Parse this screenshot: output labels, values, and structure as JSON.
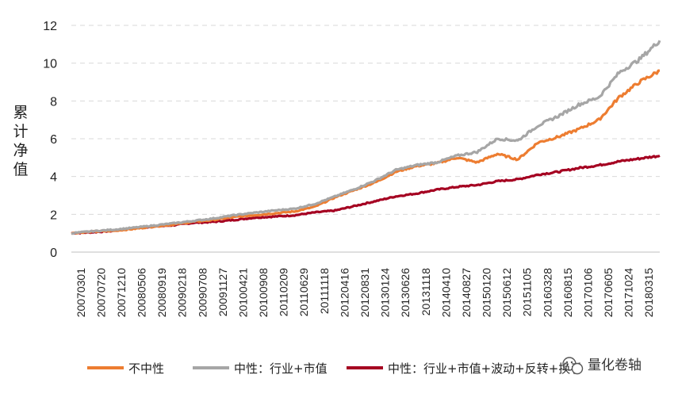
{
  "chart_data": {
    "type": "line",
    "ylabel": "累计净值",
    "ylim": [
      0,
      12
    ],
    "yticks": [
      0,
      2,
      4,
      6,
      8,
      10,
      12
    ],
    "grid": true,
    "legend_position": "bottom",
    "x_tick_labels": [
      "20070301",
      "20070720",
      "20071210",
      "20080506",
      "20080919",
      "20090218",
      "20090708",
      "20091127",
      "20100421",
      "20100908",
      "20110209",
      "20110629",
      "20111118",
      "20120416",
      "20120831",
      "20130124",
      "20130626",
      "20131118",
      "20140410",
      "20140827",
      "20150120",
      "20150612",
      "20151105",
      "20160328",
      "20160815",
      "20170106",
      "20170605",
      "20171024",
      "20180315"
    ],
    "series": [
      {
        "name": "不中性",
        "color": "#ED7D31",
        "values": [
          1.0,
          1.08,
          1.12,
          1.22,
          1.35,
          1.45,
          1.6,
          1.7,
          1.85,
          1.95,
          2.05,
          2.15,
          2.4,
          2.9,
          3.3,
          3.7,
          4.25,
          4.55,
          4.7,
          5.0,
          4.75,
          5.2,
          4.9,
          5.8,
          6.1,
          6.5,
          7.0,
          8.2,
          9.0,
          9.6
        ]
      },
      {
        "name": "中性：行业+市值",
        "color": "#A6A6A6",
        "values": [
          1.0,
          1.1,
          1.18,
          1.28,
          1.4,
          1.52,
          1.65,
          1.78,
          1.95,
          2.08,
          2.2,
          2.3,
          2.55,
          2.95,
          3.35,
          3.8,
          4.35,
          4.6,
          4.75,
          5.1,
          5.3,
          6.0,
          5.9,
          6.7,
          7.2,
          7.8,
          8.2,
          9.5,
          10.2,
          11.2
        ]
      },
      {
        "name": "中性：行业+市值+波动+反转+换手",
        "color": "#A50021",
        "values": [
          1.0,
          1.05,
          1.12,
          1.25,
          1.35,
          1.42,
          1.55,
          1.6,
          1.7,
          1.82,
          1.88,
          1.95,
          2.1,
          2.2,
          2.45,
          2.7,
          2.95,
          3.1,
          3.3,
          3.45,
          3.55,
          3.75,
          3.85,
          4.1,
          4.25,
          4.45,
          4.6,
          4.8,
          4.95,
          5.1
        ]
      }
    ]
  },
  "watermark": {
    "text": "量化卷轴",
    "icon": "wechat-icon"
  }
}
